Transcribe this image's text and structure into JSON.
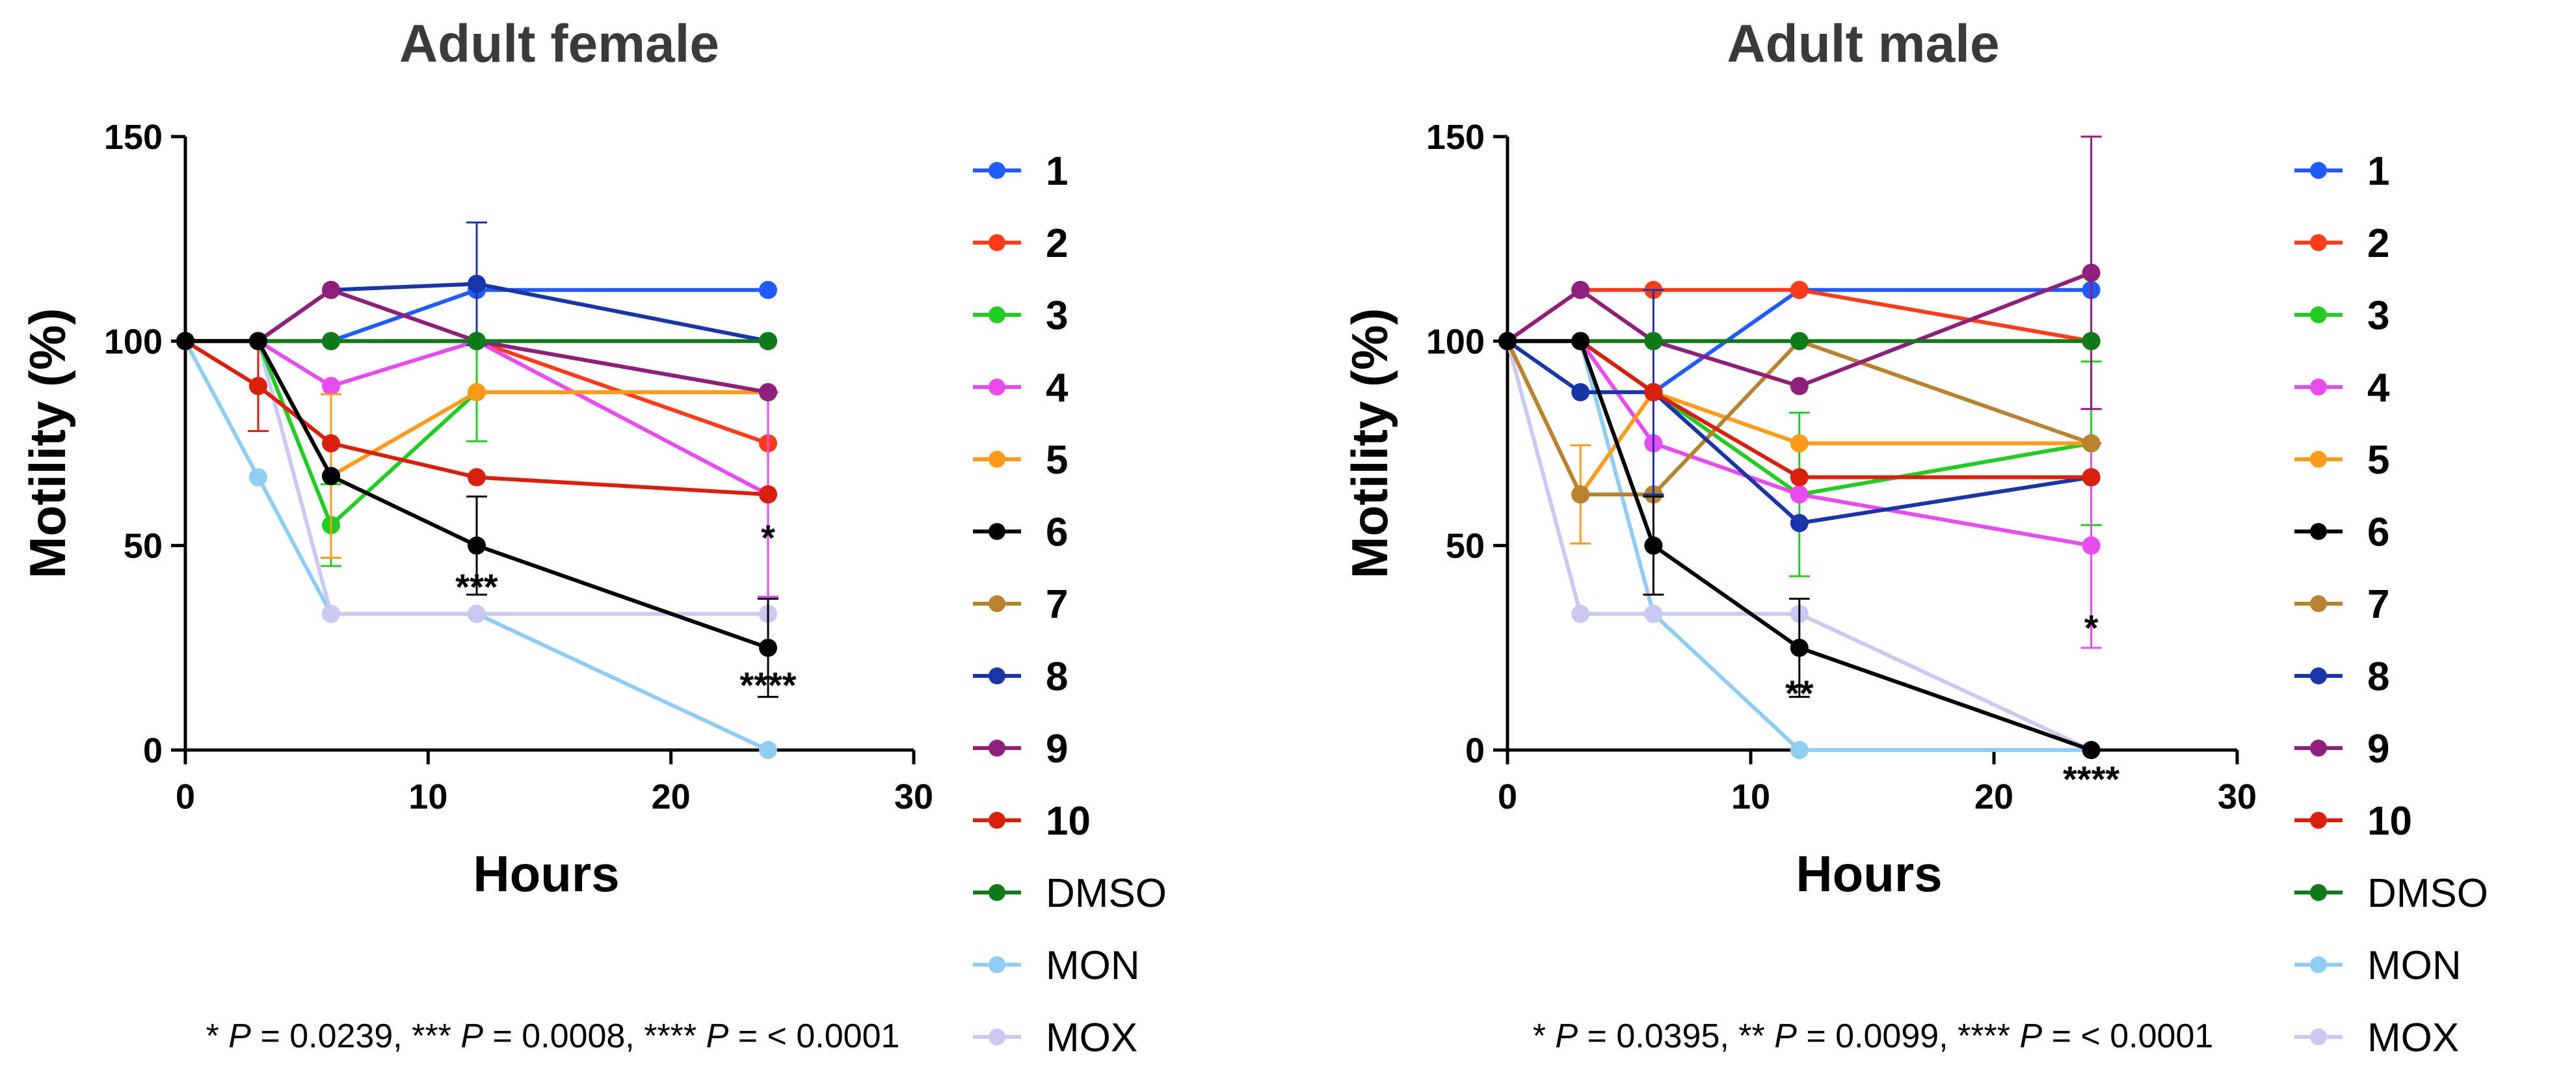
{
  "chart_data": [
    {
      "type": "line",
      "title": "Adult female",
      "xlabel": "Hours",
      "ylabel": "Motility (%)",
      "xlim": [
        0,
        30
      ],
      "ylim": [
        0,
        150
      ],
      "xticks": [
        0,
        10,
        20,
        30
      ],
      "yticks": [
        0,
        50,
        100,
        150
      ],
      "legend_position": "right",
      "x": [
        0,
        3,
        6,
        12,
        24
      ],
      "series": [
        {
          "name": "1",
          "color": "#1f5bff",
          "values": [
            100,
            100,
            100,
            112.5,
            112.5
          ],
          "err": [
            0,
            0,
            0,
            0,
            0
          ]
        },
        {
          "name": "2",
          "color": "#ff3b1a",
          "values": [
            100,
            100,
            100,
            100,
            75
          ],
          "err": [
            0,
            0,
            0,
            0,
            0
          ]
        },
        {
          "name": "3",
          "color": "#22cc22",
          "values": [
            100,
            100,
            55,
            87.5,
            87.5
          ],
          "err": [
            0,
            0,
            10,
            12,
            0
          ]
        },
        {
          "name": "4",
          "color": "#e84bf0",
          "values": [
            100,
            100,
            89,
            100,
            62.5
          ],
          "err": [
            0,
            0,
            0,
            0,
            25
          ]
        },
        {
          "name": "5",
          "color": "#ff9a1a",
          "values": [
            100,
            100,
            67,
            87.5,
            87.5
          ],
          "err": [
            0,
            0,
            20,
            0,
            0
          ]
        },
        {
          "name": "6",
          "color": "#000000",
          "values": [
            100,
            100,
            67,
            50,
            25
          ],
          "err": [
            0,
            0,
            0,
            12,
            12
          ]
        },
        {
          "name": "7",
          "color": "#b8822e",
          "values": [
            100,
            100,
            100,
            100,
            87.5
          ],
          "err": [
            0,
            0,
            0,
            0,
            0
          ]
        },
        {
          "name": "8",
          "color": "#1a35a8",
          "values": [
            100,
            100,
            112.5,
            114,
            100
          ],
          "err": [
            0,
            0,
            0,
            15,
            0
          ]
        },
        {
          "name": "9",
          "color": "#8e1f7a",
          "values": [
            100,
            100,
            112.5,
            100,
            87.5
          ],
          "err": [
            0,
            0,
            0,
            0,
            0
          ]
        },
        {
          "name": "10",
          "color": "#d8200c",
          "values": [
            100,
            89,
            75,
            66.7,
            62.5
          ],
          "err": [
            0,
            11,
            0,
            0,
            0
          ]
        },
        {
          "name": "DMSO",
          "color": "#0f7a1a",
          "values": [
            100,
            100,
            100,
            100,
            100
          ],
          "err": [
            0,
            0,
            0,
            0,
            0
          ]
        },
        {
          "name": "MON",
          "color": "#8fcdf5",
          "values": [
            100,
            66.7,
            33.3,
            33.3,
            0
          ],
          "err": [
            0,
            0,
            0,
            0,
            0
          ]
        },
        {
          "name": "MOX",
          "color": "#c9c9f2",
          "values": [
            100,
            100,
            33.3,
            33.3,
            33.3
          ],
          "err": [
            0,
            0,
            0,
            0,
            0
          ]
        }
      ],
      "annotations": [
        {
          "text": "***",
          "x": 12,
          "y": 40
        },
        {
          "text": "*",
          "x": 24,
          "y": 52
        },
        {
          "text": "****",
          "x": 24,
          "y": 16
        }
      ],
      "footnote": {
        "parts": [
          {
            "t": "* ",
            "i": false
          },
          {
            "t": "P",
            "i": true
          },
          {
            "t": " = 0.0239, *** ",
            "i": false
          },
          {
            "t": "P",
            "i": true
          },
          {
            "t": " = 0.0008, **** ",
            "i": false
          },
          {
            "t": "P",
            "i": true
          },
          {
            "t": " = < 0.0001",
            "i": false
          }
        ]
      }
    },
    {
      "type": "line",
      "title": "Adult male",
      "xlabel": "Hours",
      "ylabel": "Motility (%)",
      "xlim": [
        0,
        30
      ],
      "ylim": [
        0,
        150
      ],
      "xticks": [
        0,
        10,
        20,
        30
      ],
      "yticks": [
        0,
        50,
        100,
        150
      ],
      "legend_position": "right",
      "x": [
        0,
        3,
        6,
        12,
        24
      ],
      "series": [
        {
          "name": "1",
          "color": "#1f5bff",
          "values": [
            100,
            100,
            87.5,
            112.5,
            112.5
          ],
          "err": [
            0,
            0,
            0,
            0,
            0
          ]
        },
        {
          "name": "2",
          "color": "#ff3b1a",
          "values": [
            100,
            112.5,
            112.5,
            112.5,
            100
          ],
          "err": [
            0,
            0,
            0,
            0,
            0
          ]
        },
        {
          "name": "3",
          "color": "#22cc22",
          "values": [
            100,
            100,
            87.5,
            62.5,
            75
          ],
          "err": [
            0,
            0,
            0,
            20,
            20
          ]
        },
        {
          "name": "4",
          "color": "#e84bf0",
          "values": [
            100,
            100,
            75,
            62.5,
            50
          ],
          "err": [
            0,
            0,
            0,
            0,
            25
          ]
        },
        {
          "name": "5",
          "color": "#ff9a1a",
          "values": [
            100,
            62.5,
            87.5,
            75,
            75
          ],
          "err": [
            0,
            12,
            0,
            0,
            0
          ]
        },
        {
          "name": "6",
          "color": "#000000",
          "values": [
            100,
            100,
            50,
            25,
            0
          ],
          "err": [
            0,
            0,
            12,
            12,
            0
          ]
        },
        {
          "name": "7",
          "color": "#b8822e",
          "values": [
            100,
            62.5,
            62.5,
            100,
            75
          ],
          "err": [
            0,
            0,
            0,
            0,
            0
          ]
        },
        {
          "name": "8",
          "color": "#1a35a8",
          "values": [
            100,
            87.5,
            87.5,
            55.5,
            66.7
          ],
          "err": [
            0,
            0,
            25,
            0,
            0
          ]
        },
        {
          "name": "9",
          "color": "#8e1f7a",
          "values": [
            100,
            112.5,
            100,
            89,
            116.7
          ],
          "err": [
            0,
            0,
            0,
            0,
            33.3
          ]
        },
        {
          "name": "10",
          "color": "#d8200c",
          "values": [
            100,
            100,
            87.5,
            66.7,
            66.7
          ],
          "err": [
            0,
            0,
            0,
            0,
            0
          ]
        },
        {
          "name": "DMSO",
          "color": "#0f7a1a",
          "values": [
            100,
            100,
            100,
            100,
            100
          ],
          "err": [
            0,
            0,
            0,
            0,
            0
          ]
        },
        {
          "name": "MON",
          "color": "#8fcdf5",
          "values": [
            100,
            100,
            33.3,
            0,
            0
          ],
          "err": [
            0,
            0,
            0,
            0,
            0
          ]
        },
        {
          "name": "MOX",
          "color": "#c9c9f2",
          "values": [
            100,
            33.3,
            33.3,
            33.3,
            0
          ],
          "err": [
            0,
            0,
            0,
            0,
            0
          ]
        }
      ],
      "annotations": [
        {
          "text": "**",
          "x": 12,
          "y": 14
        },
        {
          "text": "*",
          "x": 24,
          "y": 30
        },
        {
          "text": "****",
          "x": 24,
          "y": -7
        }
      ],
      "footnote": {
        "parts": [
          {
            "t": "* ",
            "i": false
          },
          {
            "t": "P",
            "i": true
          },
          {
            "t": " = 0.0395, ** ",
            "i": false
          },
          {
            "t": "P",
            "i": true
          },
          {
            "t": " = 0.0099, **** ",
            "i": false
          },
          {
            "t": "P",
            "i": true
          },
          {
            "t": " = < 0.0001",
            "i": false
          }
        ]
      }
    }
  ]
}
